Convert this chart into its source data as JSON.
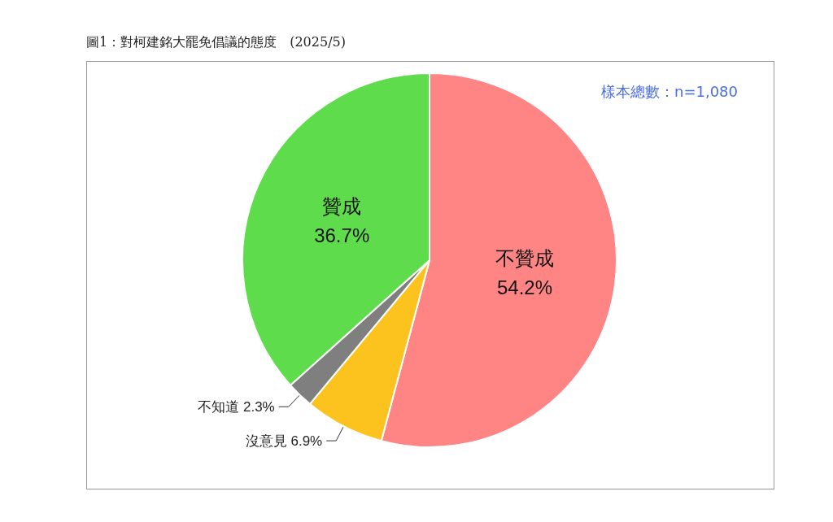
{
  "chart_data": {
    "type": "pie",
    "title": "圖1：對柯建銘大罷免倡議的態度　(2025/5)",
    "annotations": [
      "樣本總數：n=1,080"
    ],
    "categories": [
      "不贊成",
      "沒意見",
      "不知道",
      "贊成"
    ],
    "values": [
      54.2,
      6.9,
      2.3,
      36.7
    ],
    "colors": [
      "#ff8585",
      "#fcc31e",
      "#7f7f7f",
      "#5fdc4b"
    ],
    "value_labels": [
      "54.2%",
      "6.9%",
      "2.3%",
      "36.7%"
    ],
    "legend": false
  }
}
